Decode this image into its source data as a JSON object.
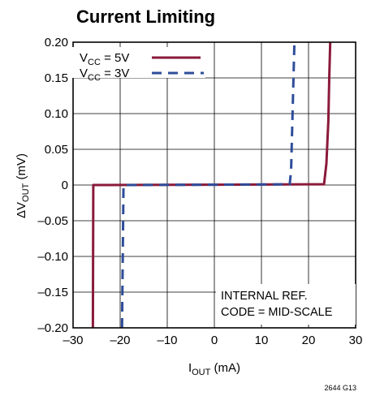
{
  "chart_data": {
    "type": "line",
    "title": "Current Limiting",
    "xlabel": {
      "main": "I",
      "sub": "OUT",
      "suffix": " (mA)"
    },
    "ylabel": {
      "prefix": "ΔV",
      "sub": "OUT",
      "suffix": " (mV)"
    },
    "xlim": [
      -30,
      30
    ],
    "ylim": [
      -0.2,
      0.2
    ],
    "x_ticks": [
      -30,
      -20,
      -10,
      0,
      10,
      20,
      30
    ],
    "x_tick_labels": [
      "–30",
      "–20",
      "–10",
      "0",
      "10",
      "20",
      "30"
    ],
    "y_ticks": [
      0.2,
      0.15,
      0.1,
      0.05,
      0,
      -0.05,
      -0.1,
      -0.15,
      -0.2
    ],
    "y_tick_labels": [
      "0.20",
      "0.15",
      "0.10",
      "0.05",
      "0",
      "–0.05",
      "–0.10",
      "–0.15",
      "–0.20"
    ],
    "grid": true,
    "legend_position": "top-left",
    "series": [
      {
        "name": {
          "prefix": "V",
          "sub": "CC",
          "suffix": " = 5V"
        },
        "color": "#8b1a3a",
        "style": "solid",
        "x": [
          -25.8,
          -25.7,
          -25.4,
          0,
          23.3,
          23.8,
          24.2,
          24.4,
          24.6
        ],
        "y": [
          -0.2,
          0.0,
          0.0,
          0.0005,
          0.001,
          0.03,
          0.09,
          0.15,
          0.2
        ]
      },
      {
        "name": {
          "prefix": "V",
          "sub": "CC",
          "suffix": " = 3V"
        },
        "color": "#2e4d9a",
        "style": "dashed",
        "x": [
          -19.6,
          -19.3,
          -19.0,
          0,
          16.0,
          16.3,
          17.0
        ],
        "y": [
          -0.2,
          0.0,
          0.0,
          0.0005,
          0.001,
          0.02,
          0.2
        ]
      }
    ],
    "annotations": [
      "INTERNAL REF.",
      "CODE = MID-SCALE"
    ],
    "figure_code": "2644 G13"
  }
}
